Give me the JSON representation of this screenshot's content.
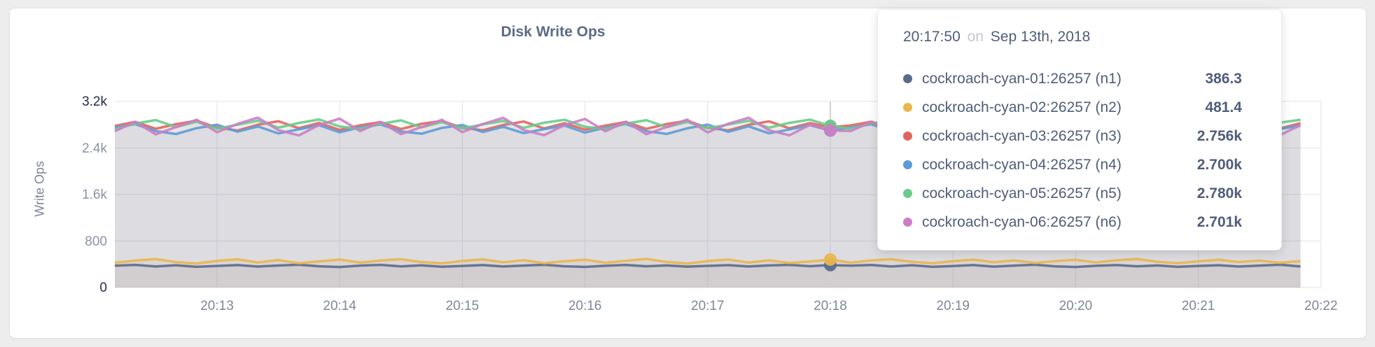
{
  "page": {
    "background": "#ededed"
  },
  "chart_data": {
    "type": "line",
    "title": "Disk Write Ops",
    "ylabel": "Write Ops",
    "xlabel": "",
    "grid": true,
    "legend_position": "none",
    "ylim": [
      0,
      3200
    ],
    "y_ticks": [
      {
        "value": 0,
        "label": "0",
        "emphasis": true
      },
      {
        "value": 800,
        "label": "800",
        "emphasis": false
      },
      {
        "value": 1600,
        "label": "1.6k",
        "emphasis": false
      },
      {
        "value": 2400,
        "label": "2.4k",
        "emphasis": false
      },
      {
        "value": 3200,
        "label": "3.2k",
        "emphasis": true
      }
    ],
    "x_tick_labels": [
      "20:13",
      "20:14",
      "20:15",
      "20:16",
      "20:17",
      "20:18",
      "20:19",
      "20:20",
      "20:21",
      "20:22"
    ],
    "x_axis_hints": {
      "points_per_tick_interval": 6,
      "points_before_first_tick": 5,
      "total_points": 59
    },
    "series": [
      {
        "id": "n1",
        "name": "cockroach-cyan-01:26257 (n1)",
        "color": "#5a6b8c",
        "values": [
          376,
          390,
          363,
          383,
          357,
          372,
          387,
          361,
          379,
          392,
          365,
          354,
          377,
          389,
          364,
          382,
          358,
          371,
          386,
          362,
          378,
          391,
          366,
          355,
          375,
          388,
          365,
          381,
          359,
          373,
          385,
          363,
          380,
          390,
          367,
          386.3,
          376,
          388,
          362,
          384,
          356,
          370,
          386,
          360,
          377,
          393,
          364,
          353,
          374,
          387,
          366,
          380,
          357,
          372,
          384,
          361,
          378,
          392,
          363
        ]
      },
      {
        "id": "n2",
        "name": "cockroach-cyan-02:26257 (n2)",
        "color": "#e9b64e",
        "values": [
          427,
          463,
          490,
          436,
          414,
          459,
          486,
          432,
          472,
          418,
          450,
          481,
          429,
          465,
          488,
          438,
          416,
          457,
          484,
          434,
          470,
          420,
          452,
          479,
          425,
          461,
          492,
          440,
          412,
          455,
          482,
          430,
          468,
          422,
          448,
          481.4,
          427,
          467,
          486,
          442,
          418,
          453,
          480,
          436,
          466,
          424,
          454,
          477,
          431,
          469,
          490,
          444,
          420,
          451,
          478,
          438,
          464,
          426,
          456
        ]
      },
      {
        "id": "n3",
        "name": "cockroach-cyan-03:26257 (n3)",
        "color": "#e0655e",
        "values": [
          2780,
          2850,
          2730,
          2810,
          2870,
          2750,
          2700,
          2800,
          2860,
          2740,
          2830,
          2710,
          2790,
          2845,
          2725,
          2815,
          2865,
          2745,
          2705,
          2795,
          2855,
          2735,
          2825,
          2715,
          2785,
          2848,
          2728,
          2812,
          2868,
          2748,
          2702,
          2798,
          2858,
          2738,
          2828,
          2756,
          2788,
          2852,
          2732,
          2808,
          2872,
          2752,
          2698,
          2802,
          2862,
          2742,
          2832,
          2712,
          2782,
          2846,
          2726,
          2816,
          2866,
          2746,
          2706,
          2796,
          2856,
          2736,
          2826
        ]
      },
      {
        "id": "n4",
        "name": "cockroach-cyan-04:26257 (n4)",
        "color": "#5c9bd6",
        "values": [
          2750,
          2810,
          2690,
          2640,
          2740,
          2800,
          2680,
          2770,
          2650,
          2720,
          2790,
          2670,
          2755,
          2805,
          2685,
          2645,
          2745,
          2795,
          2675,
          2765,
          2655,
          2725,
          2785,
          2665,
          2748,
          2812,
          2688,
          2642,
          2738,
          2802,
          2678,
          2772,
          2652,
          2718,
          2792,
          2700,
          2752,
          2808,
          2692,
          2648,
          2742,
          2798,
          2682,
          2768,
          2658,
          2722,
          2788,
          2668,
          2746,
          2806,
          2686,
          2646,
          2744,
          2796,
          2676,
          2766,
          2656,
          2726,
          2786
        ]
      },
      {
        "id": "n5",
        "name": "cockroach-cyan-05:26257 (n5)",
        "color": "#69cb8b",
        "values": [
          2720,
          2820,
          2880,
          2760,
          2850,
          2730,
          2800,
          2870,
          2750,
          2830,
          2890,
          2770,
          2725,
          2815,
          2875,
          2755,
          2845,
          2735,
          2805,
          2865,
          2745,
          2835,
          2885,
          2765,
          2722,
          2818,
          2878,
          2758,
          2848,
          2738,
          2802,
          2868,
          2748,
          2832,
          2888,
          2780,
          2728,
          2822,
          2872,
          2762,
          2852,
          2742,
          2798,
          2862,
          2752,
          2828,
          2882,
          2768,
          2726,
          2816,
          2876,
          2756,
          2846,
          2736,
          2806,
          2866,
          2746,
          2836,
          2886
        ]
      },
      {
        "id": "n6",
        "name": "cockroach-cyan-06:26257 (n6)",
        "color": "#cb7ec6",
        "values": [
          2688,
          2850,
          2634,
          2760,
          2886,
          2670,
          2814,
          2922,
          2706,
          2616,
          2796,
          2904,
          2690,
          2848,
          2638,
          2758,
          2884,
          2672,
          2812,
          2918,
          2708,
          2620,
          2794,
          2900,
          2686,
          2852,
          2636,
          2762,
          2888,
          2668,
          2816,
          2920,
          2704,
          2618,
          2798,
          2701,
          2692,
          2846,
          2640,
          2756,
          2882,
          2674,
          2810,
          2916,
          2710,
          2622,
          2792,
          2898,
          2684,
          2854,
          2632,
          2764,
          2890,
          2666,
          2818,
          2924,
          2702,
          2624,
          2790
        ]
      }
    ]
  },
  "tooltip": {
    "time": "20:17:50",
    "separator": "on",
    "date": "Sep 13th, 2018",
    "hover_index": 35,
    "rows": [
      {
        "name": "cockroach-cyan-01:26257 (n1)",
        "value": "386.3",
        "color": "#5a6b8c"
      },
      {
        "name": "cockroach-cyan-02:26257 (n2)",
        "value": "481.4",
        "color": "#e9b64e"
      },
      {
        "name": "cockroach-cyan-03:26257 (n3)",
        "value": "2.756k",
        "color": "#e0655e"
      },
      {
        "name": "cockroach-cyan-04:26257 (n4)",
        "value": "2.700k",
        "color": "#5c9bd6"
      },
      {
        "name": "cockroach-cyan-05:26257 (n5)",
        "value": "2.780k",
        "color": "#69cb8b"
      },
      {
        "name": "cockroach-cyan-06:26257 (n6)",
        "value": "2.701k",
        "color": "#cb7ec6"
      }
    ]
  },
  "style": {
    "grid_color": "#e3e3e7",
    "guideline_color": "#d0d0d5",
    "fill_opacity": 0.09
  }
}
